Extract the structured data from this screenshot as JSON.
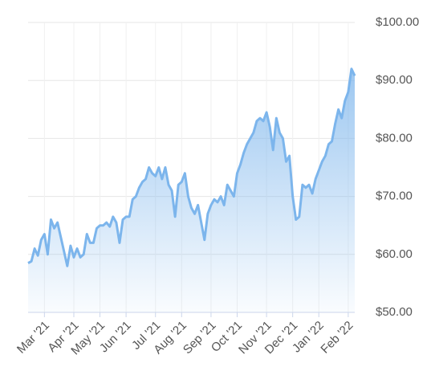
{
  "chart_data": {
    "type": "area",
    "categories": [
      null,
      null,
      null,
      null,
      null,
      "Mar '21",
      null,
      null,
      null,
      null,
      null,
      null,
      null,
      null,
      "Apr '21",
      null,
      null,
      null,
      null,
      null,
      null,
      null,
      "May '21",
      null,
      null,
      null,
      null,
      null,
      null,
      null,
      "Jun '21",
      null,
      null,
      null,
      null,
      null,
      null,
      null,
      null,
      "Jul '21",
      null,
      null,
      null,
      null,
      null,
      null,
      null,
      "Aug '21",
      null,
      null,
      null,
      null,
      null,
      null,
      null,
      null,
      "Sep '21",
      null,
      null,
      null,
      null,
      null,
      null,
      null,
      "Oct '21",
      null,
      null,
      null,
      null,
      null,
      null,
      null,
      null,
      "Nov '21",
      null,
      null,
      null,
      null,
      null,
      null,
      null,
      "Dec '21",
      null,
      null,
      null,
      null,
      null,
      null,
      null,
      "Jan '22",
      null,
      null,
      null,
      null,
      null,
      null,
      null,
      null,
      "Feb '22",
      null,
      null
    ],
    "values": [
      58.5,
      58.8,
      61,
      59.8,
      62.5,
      63.5,
      60,
      66,
      64.5,
      65.5,
      63,
      60.5,
      58,
      61.5,
      59.5,
      61,
      59.5,
      60,
      63.5,
      62,
      62,
      64.5,
      65,
      65,
      65.5,
      64.8,
      66.5,
      65.5,
      62,
      66,
      66.5,
      66.5,
      69.5,
      70,
      71.5,
      72.5,
      73,
      75,
      74,
      73.5,
      75,
      73,
      75,
      72,
      71,
      66.5,
      72,
      72.5,
      74,
      70,
      68,
      67,
      68.5,
      65.5,
      62.5,
      67,
      68.5,
      69.5,
      69,
      70,
      68.5,
      72,
      71,
      70,
      74,
      75.5,
      77.5,
      79,
      80,
      81,
      83,
      83.5,
      83,
      84.5,
      82,
      78,
      83.5,
      81,
      80,
      76,
      77,
      70,
      66,
      66.5,
      72,
      71.5,
      72,
      70.5,
      73,
      74.5,
      76,
      77,
      79,
      79.5,
      82.5,
      85,
      83.5,
      86.5,
      88,
      92,
      90.8
    ],
    "color": "#7cb5ec",
    "ylim": [
      50,
      100
    ],
    "yticks": [
      {
        "value": 50,
        "label": "$50.00"
      },
      {
        "value": 60,
        "label": "$60.00"
      },
      {
        "value": 70,
        "label": "$70.00"
      },
      {
        "value": 80,
        "label": "$80.00"
      },
      {
        "value": 90,
        "label": "$90.00"
      },
      {
        "value": 100,
        "label": "$100.00"
      }
    ],
    "grid": true
  }
}
